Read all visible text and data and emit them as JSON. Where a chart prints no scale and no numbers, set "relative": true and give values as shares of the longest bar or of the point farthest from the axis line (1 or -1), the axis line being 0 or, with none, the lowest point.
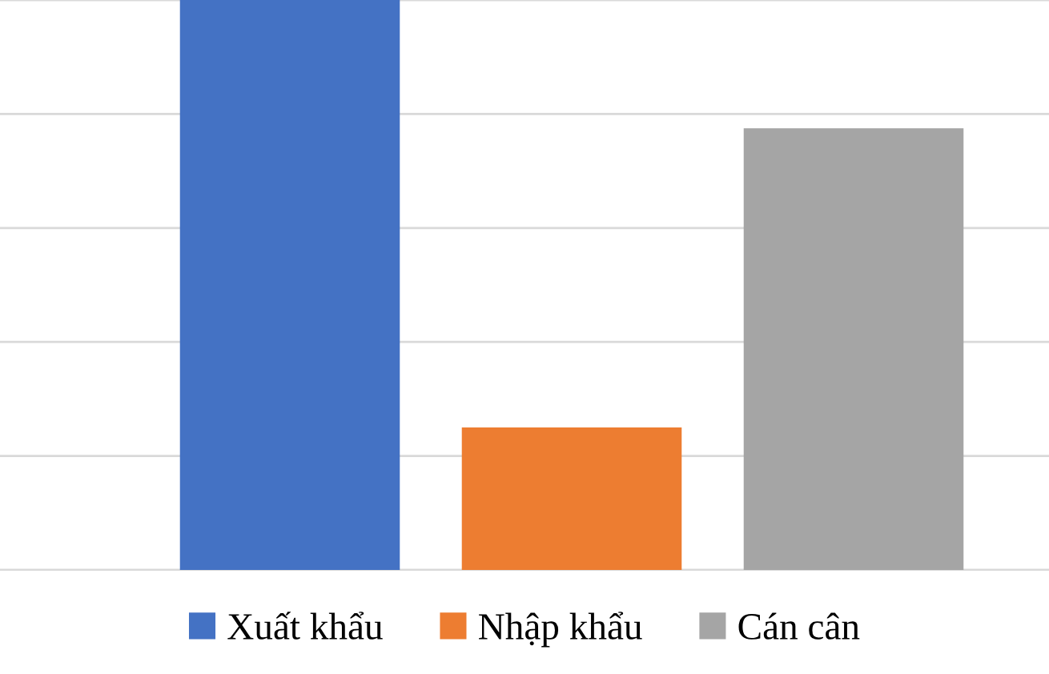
{
  "chart_data": {
    "type": "bar",
    "relative": true,
    "categories": [
      null
    ],
    "series": [
      {
        "name": "Xuất khẩu",
        "color": "#4472c4",
        "values": [
          1
        ]
      },
      {
        "name": "Nhập khẩu",
        "color": "#ed7d31",
        "values": [
          0.25
        ]
      },
      {
        "name": "Cán cân",
        "color": "#a5a5a5",
        "values": [
          0.775
        ]
      }
    ],
    "grid": "y",
    "legend": "bottom"
  }
}
